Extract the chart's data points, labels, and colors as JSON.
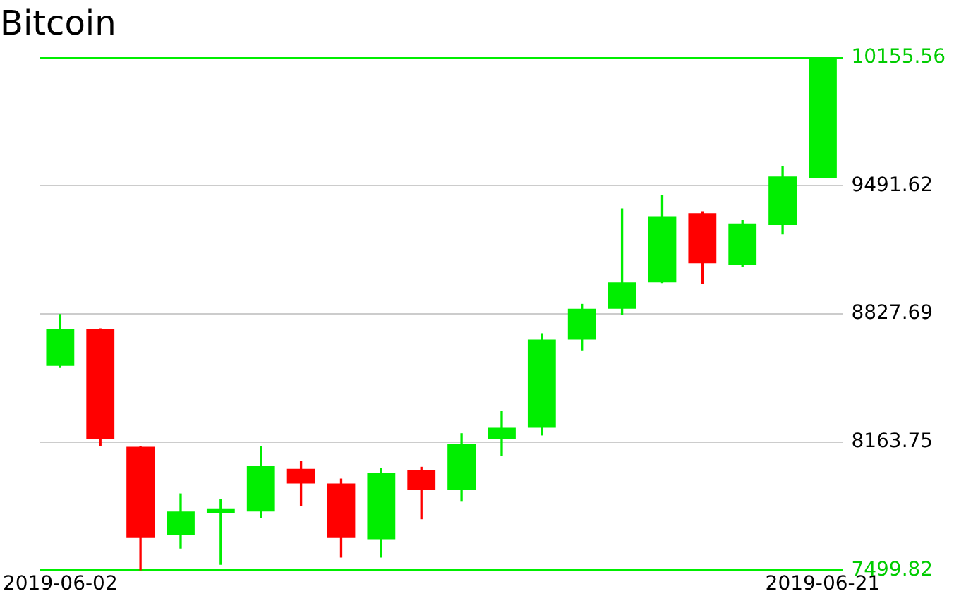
{
  "chart_data": {
    "type": "candlestick",
    "title": "Bitcoin",
    "categories": [
      "2019-06-02",
      null,
      null,
      null,
      null,
      null,
      null,
      null,
      null,
      null,
      null,
      null,
      null,
      null,
      null,
      null,
      null,
      null,
      null,
      "2019-06-21"
    ],
    "ohlc": [
      [
        8558,
        8824,
        8550,
        8748
      ],
      [
        8748,
        8750,
        8146,
        8177
      ],
      [
        8139,
        8140,
        7500,
        7667
      ],
      [
        7682,
        7895,
        7614,
        7804
      ],
      [
        7797,
        7865,
        7530,
        7820
      ],
      [
        7804,
        8139,
        7774,
        8040
      ],
      [
        8025,
        8063,
        7835,
        7949
      ],
      [
        7949,
        7972,
        7568,
        7667
      ],
      [
        7660,
        8025,
        7568,
        8002
      ],
      [
        8017,
        8033,
        7766,
        7918
      ],
      [
        7918,
        8207,
        7857,
        8154
      ],
      [
        8177,
        8322,
        8093,
        8238
      ],
      [
        8238,
        8725,
        8200,
        8694
      ],
      [
        8694,
        8877,
        8641,
        8854
      ],
      [
        8854,
        9372,
        8824,
        8991
      ],
      [
        8991,
        9440,
        8990,
        9334
      ],
      [
        9349,
        9357,
        8984,
        9090
      ],
      [
        9083,
        9311,
        9075,
        9296
      ],
      [
        9288,
        9592,
        9242,
        9539
      ],
      [
        9532,
        10155.56,
        9532,
        10155.56
      ]
    ],
    "colors": [
      "#00ee00",
      "#ff0000",
      "#ff0000",
      "#00ee00",
      "#00ee00",
      "#00ee00",
      "#ff0000",
      "#ff0000",
      "#00ee00",
      "#ff0000",
      "#00ee00",
      "#00ee00",
      "#00ee00",
      "#00ee00",
      "#00ee00",
      "#00ee00",
      "#ff0000",
      "#00ee00",
      "#00ee00",
      "#00ee00"
    ],
    "ylim": [
      7499.82,
      10155.56
    ],
    "yticks": [
      7499.82,
      8163.75,
      8827.69,
      9491.62,
      10155.56
    ],
    "grid": "y"
  }
}
